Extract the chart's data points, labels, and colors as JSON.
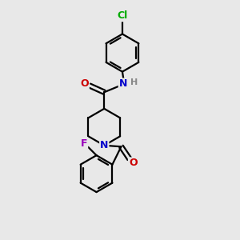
{
  "bg_color": "#e8e8e8",
  "bond_color": "#000000",
  "bond_width": 1.6,
  "atom_colors": {
    "N_amide": "#0000cc",
    "N_pip": "#0000cc",
    "O": "#cc0000",
    "Cl": "#00aa00",
    "F": "#9900bb",
    "H": "#888888"
  },
  "font_size": 9,
  "figsize": [
    3.0,
    3.0
  ],
  "dpi": 100,
  "scale": 1.0
}
